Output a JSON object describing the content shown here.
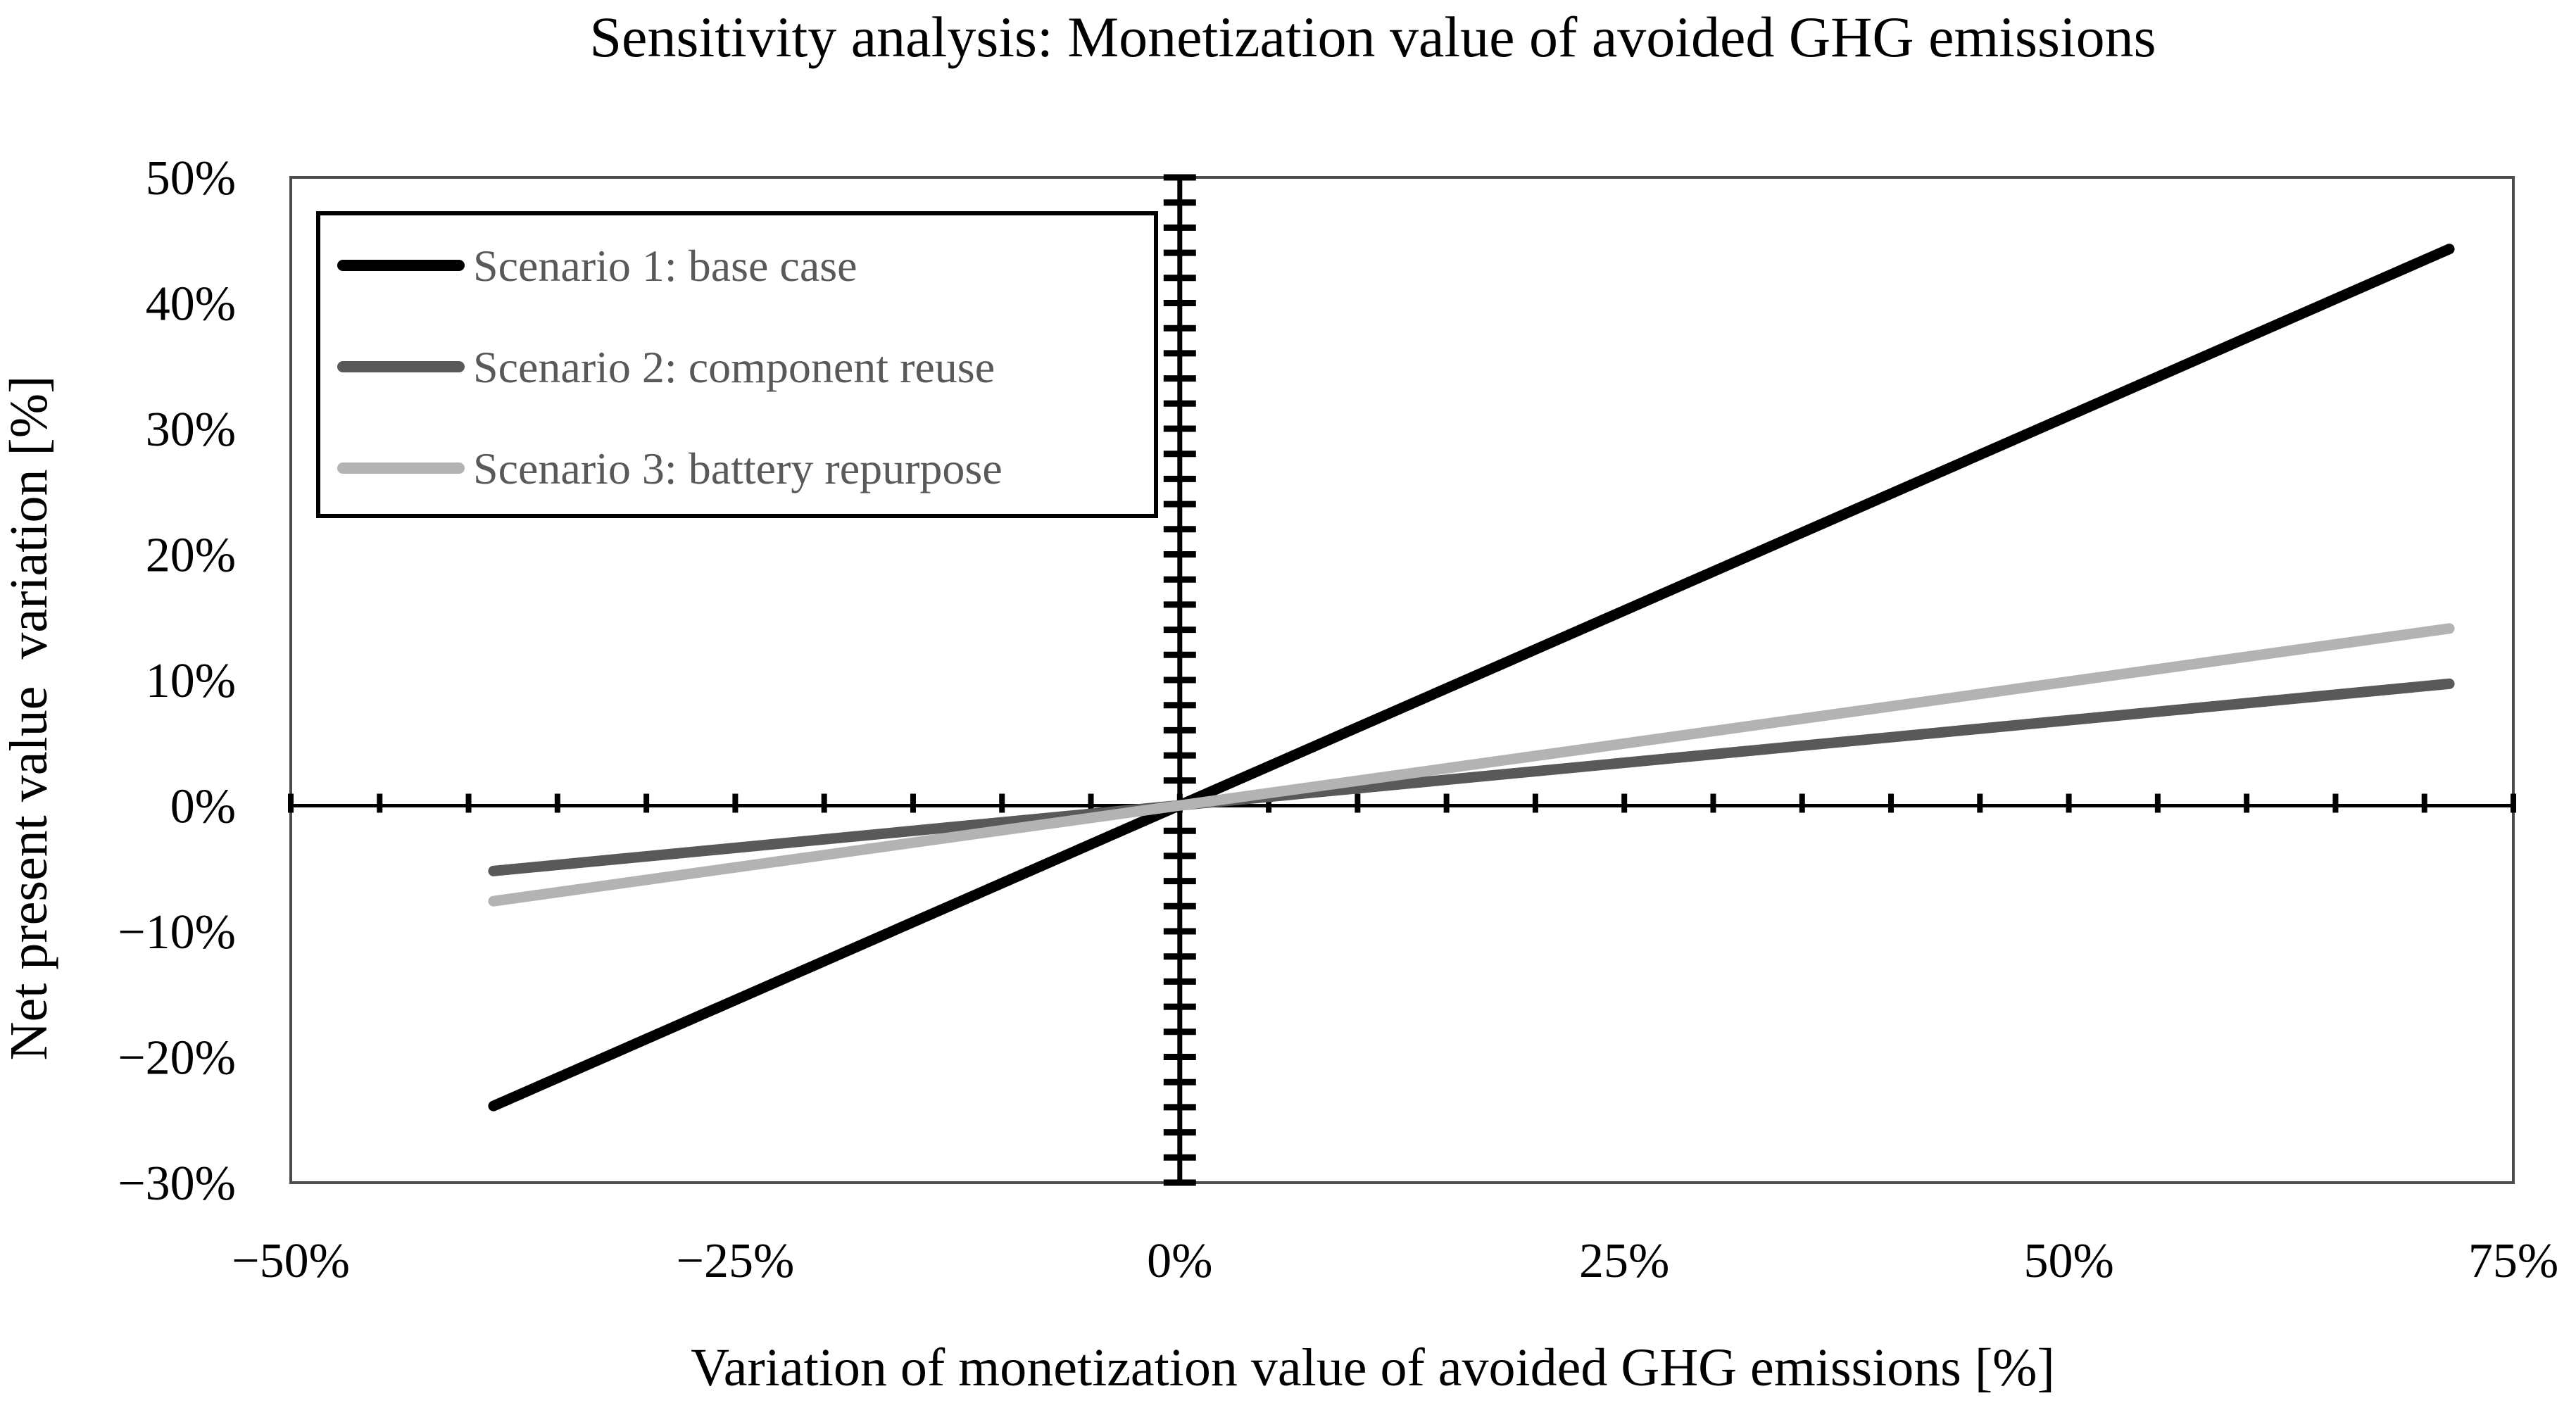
{
  "chart_data": {
    "type": "line",
    "title": "Sensitivity analysis: Monetization value of avoided GHG emissions",
    "xlabel": "Variation of monetization value of avoided GHG emissions [%]",
    "ylabel": "Net present value  variation [%]",
    "grid": false,
    "legend_position": "top-left",
    "x_axis": {
      "min": -50,
      "max": 75,
      "unit": "%",
      "minor_tick_step": 5,
      "tick_labels": [
        {
          "value": -50,
          "label": "−50%"
        },
        {
          "value": -25,
          "label": "−25%"
        },
        {
          "value": 0,
          "label": "0%"
        },
        {
          "value": 25,
          "label": "25%"
        },
        {
          "value": 50,
          "label": "50%"
        },
        {
          "value": 75,
          "label": "75%"
        }
      ]
    },
    "y_axis": {
      "min": -30,
      "max": 50,
      "unit": "%",
      "minor_tick_step": 2,
      "tick_labels": [
        {
          "value": 50,
          "label": "50%"
        },
        {
          "value": 40,
          "label": "40%"
        },
        {
          "value": 30,
          "label": "30%"
        },
        {
          "value": 20,
          "label": "20%"
        },
        {
          "value": 10,
          "label": "10%"
        },
        {
          "value": 0,
          "label": "0%"
        },
        {
          "value": -10,
          "label": "−10%"
        },
        {
          "value": -20,
          "label": "−20%"
        },
        {
          "value": -30,
          "label": "−30%"
        }
      ]
    },
    "series": [
      {
        "name": "Scenario 1: base case",
        "color": "#000000",
        "points": [
          [
            -38.6,
            -23.9
          ],
          [
            71.4,
            44.3
          ]
        ]
      },
      {
        "name": "Scenario 2: component reuse",
        "color": "#595959",
        "points": [
          [
            -38.6,
            -5.2
          ],
          [
            71.4,
            9.7
          ]
        ]
      },
      {
        "name": "Scenario 3: battery repurpose",
        "color": "#b3b3b3",
        "points": [
          [
            -38.6,
            -7.6
          ],
          [
            71.4,
            14.1
          ]
        ]
      }
    ]
  },
  "style": {
    "plot_border_color": "#4d4d4d",
    "axis_color": "#000000",
    "tick_label_color": "#000000",
    "legend_text_color": "#595959",
    "background": "#ffffff"
  }
}
